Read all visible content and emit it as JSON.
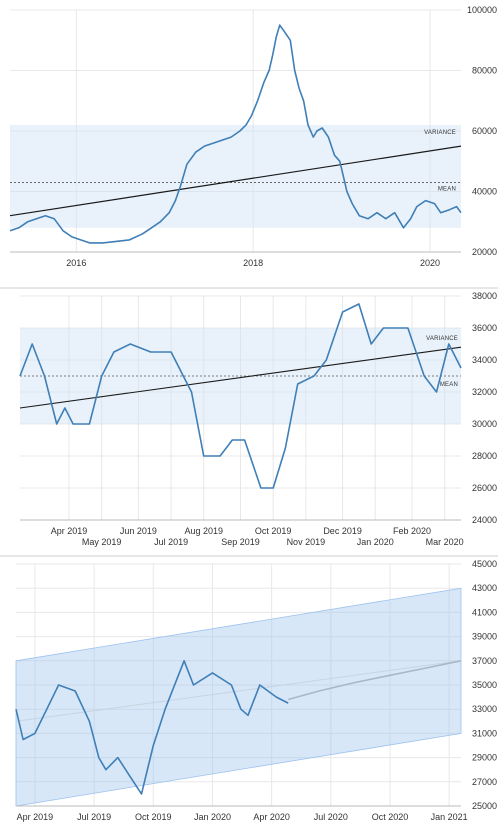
{
  "colors": {
    "line": "#3f7fb7",
    "trend": "#1a1a1a",
    "band": "#cfe3f5",
    "forecast_band": "#9cc2ee",
    "forecast_line": "#a9b7c8",
    "grid": "#e8e8e8",
    "mean": "#555555"
  },
  "chart_data": [
    {
      "type": "line",
      "x_ticks": [
        "2016",
        "2018",
        "2020"
      ],
      "y_ticks": [
        "100000",
        "80000",
        "60000",
        "40000",
        "20000"
      ],
      "ylim": [
        20000,
        100000
      ],
      "xlim": [
        2015.25,
        2020.35
      ],
      "variance_label": "VARIANCE",
      "mean_label": "MEAN",
      "band": [
        28000,
        62000
      ],
      "mean": 43000,
      "trend": [
        [
          2015.25,
          32000
        ],
        [
          2020.35,
          55000
        ]
      ],
      "series": [
        {
          "values": [
            [
              2015.25,
              27000
            ],
            [
              2015.35,
              28000
            ],
            [
              2015.45,
              30000
            ],
            [
              2015.55,
              31000
            ],
            [
              2015.65,
              32000
            ],
            [
              2015.75,
              31000
            ],
            [
              2015.85,
              27000
            ],
            [
              2015.95,
              25000
            ],
            [
              2016.05,
              24000
            ],
            [
              2016.15,
              23000
            ],
            [
              2016.3,
              23000
            ],
            [
              2016.45,
              23500
            ],
            [
              2016.6,
              24000
            ],
            [
              2016.75,
              26000
            ],
            [
              2016.85,
              28000
            ],
            [
              2016.95,
              30000
            ],
            [
              2017.05,
              33000
            ],
            [
              2017.12,
              37000
            ],
            [
              2017.18,
              42000
            ],
            [
              2017.25,
              49000
            ],
            [
              2017.35,
              53000
            ],
            [
              2017.45,
              55000
            ],
            [
              2017.55,
              56000
            ],
            [
              2017.65,
              57000
            ],
            [
              2017.75,
              58000
            ],
            [
              2017.85,
              60000
            ],
            [
              2017.92,
              62000
            ],
            [
              2017.98,
              65000
            ],
            [
              2018.05,
              70000
            ],
            [
              2018.12,
              76000
            ],
            [
              2018.18,
              80000
            ],
            [
              2018.22,
              85000
            ],
            [
              2018.26,
              91000
            ],
            [
              2018.3,
              95000
            ],
            [
              2018.35,
              93000
            ],
            [
              2018.42,
              90000
            ],
            [
              2018.47,
              80000
            ],
            [
              2018.52,
              74000
            ],
            [
              2018.57,
              70000
            ],
            [
              2018.62,
              62000
            ],
            [
              2018.68,
              58000
            ],
            [
              2018.72,
              60000
            ],
            [
              2018.78,
              61000
            ],
            [
              2018.85,
              58000
            ],
            [
              2018.92,
              52000
            ],
            [
              2018.98,
              50000
            ],
            [
              2019.02,
              45000
            ],
            [
              2019.06,
              40000
            ],
            [
              2019.12,
              36000
            ],
            [
              2019.2,
              32000
            ],
            [
              2019.3,
              31000
            ],
            [
              2019.4,
              33000
            ],
            [
              2019.5,
              31000
            ],
            [
              2019.6,
              33000
            ],
            [
              2019.7,
              28000
            ],
            [
              2019.78,
              31000
            ],
            [
              2019.85,
              35000
            ],
            [
              2019.95,
              37000
            ],
            [
              2020.05,
              36000
            ],
            [
              2020.12,
              33000
            ],
            [
              2020.22,
              34000
            ],
            [
              2020.3,
              35000
            ],
            [
              2020.35,
              33000
            ]
          ]
        }
      ]
    },
    {
      "type": "line",
      "x_ticks_top": [
        "Apr 2019",
        "Jun 2019",
        "Aug 2019",
        "Oct 2019",
        "Dec 2019",
        "Feb 2020"
      ],
      "x_ticks_bottom": [
        "May 2019",
        "Jul 2019",
        "Sep 2019",
        "Nov 2019",
        "Jan 2020",
        "Mar 2020"
      ],
      "y_ticks": [
        "38000",
        "36000",
        "34000",
        "32000",
        "30000",
        "28000",
        "26000",
        "24000"
      ],
      "ylim": [
        24000,
        38000
      ],
      "xlim": [
        2019.13,
        2020.21
      ],
      "variance_label": "VARIANCE",
      "mean_label": "MEAN",
      "band": [
        30000,
        36000
      ],
      "mean": 33000,
      "trend": [
        [
          2019.13,
          31000
        ],
        [
          2020.21,
          34800
        ]
      ],
      "series": [
        {
          "values": [
            [
              2019.13,
              33000
            ],
            [
              2019.16,
              35000
            ],
            [
              2019.19,
              33000
            ],
            [
              2019.22,
              30000
            ],
            [
              2019.24,
              31000
            ],
            [
              2019.26,
              30000
            ],
            [
              2019.3,
              30000
            ],
            [
              2019.33,
              33000
            ],
            [
              2019.36,
              34500
            ],
            [
              2019.4,
              35000
            ],
            [
              2019.45,
              34500
            ],
            [
              2019.5,
              34500
            ],
            [
              2019.53,
              33000
            ],
            [
              2019.55,
              32000
            ],
            [
              2019.58,
              28000
            ],
            [
              2019.62,
              28000
            ],
            [
              2019.65,
              29000
            ],
            [
              2019.68,
              29000
            ],
            [
              2019.72,
              26000
            ],
            [
              2019.75,
              26000
            ],
            [
              2019.78,
              28500
            ],
            [
              2019.81,
              32500
            ],
            [
              2019.85,
              33000
            ],
            [
              2019.88,
              34000
            ],
            [
              2019.92,
              37000
            ],
            [
              2019.96,
              37500
            ],
            [
              2019.99,
              35000
            ],
            [
              2020.02,
              36000
            ],
            [
              2020.08,
              36000
            ],
            [
              2020.12,
              33000
            ],
            [
              2020.15,
              32000
            ],
            [
              2020.18,
              35000
            ],
            [
              2020.21,
              33500
            ]
          ]
        }
      ]
    },
    {
      "type": "line",
      "x_ticks": [
        "Apr 2019",
        "Jul 2019",
        "Oct 2019",
        "Jan 2020",
        "Apr 2020",
        "Jul 2020",
        "Oct 2020",
        "Jan 2021"
      ],
      "y_ticks": [
        "45000",
        "43000",
        "41000",
        "39000",
        "37000",
        "35000",
        "33000",
        "31000",
        "29000",
        "27000",
        "25000"
      ],
      "ylim": [
        25000,
        45000
      ],
      "xlim": [
        2019.17,
        2021.05
      ],
      "forecast_band_lower": [
        [
          2019.17,
          25000
        ],
        [
          2021.05,
          31000
        ]
      ],
      "forecast_band_upper": [
        [
          2019.17,
          37000
        ],
        [
          2021.05,
          43000
        ]
      ],
      "trend": [
        [
          2019.17,
          32000
        ],
        [
          2021.05,
          37000
        ]
      ],
      "series": [
        {
          "values": [
            [
              2019.17,
              33000
            ],
            [
              2019.2,
              30500
            ],
            [
              2019.25,
              31000
            ],
            [
              2019.3,
              33000
            ],
            [
              2019.35,
              35000
            ],
            [
              2019.42,
              34500
            ],
            [
              2019.48,
              32000
            ],
            [
              2019.52,
              29000
            ],
            [
              2019.55,
              28000
            ],
            [
              2019.6,
              29000
            ],
            [
              2019.65,
              27500
            ],
            [
              2019.7,
              26000
            ],
            [
              2019.75,
              30000
            ],
            [
              2019.8,
              33000
            ],
            [
              2019.88,
              37000
            ],
            [
              2019.92,
              35000
            ],
            [
              2020.0,
              36000
            ],
            [
              2020.08,
              35000
            ],
            [
              2020.12,
              33000
            ],
            [
              2020.15,
              32500
            ],
            [
              2020.2,
              35000
            ],
            [
              2020.27,
              34000
            ],
            [
              2020.32,
              33500
            ]
          ]
        },
        {
          "values": [
            [
              2020.32,
              33800
            ],
            [
              2020.45,
              34500
            ],
            [
              2020.6,
              35200
            ],
            [
              2020.75,
              35800
            ],
            [
              2020.9,
              36400
            ],
            [
              2021.05,
              37000
            ]
          ]
        }
      ]
    }
  ]
}
